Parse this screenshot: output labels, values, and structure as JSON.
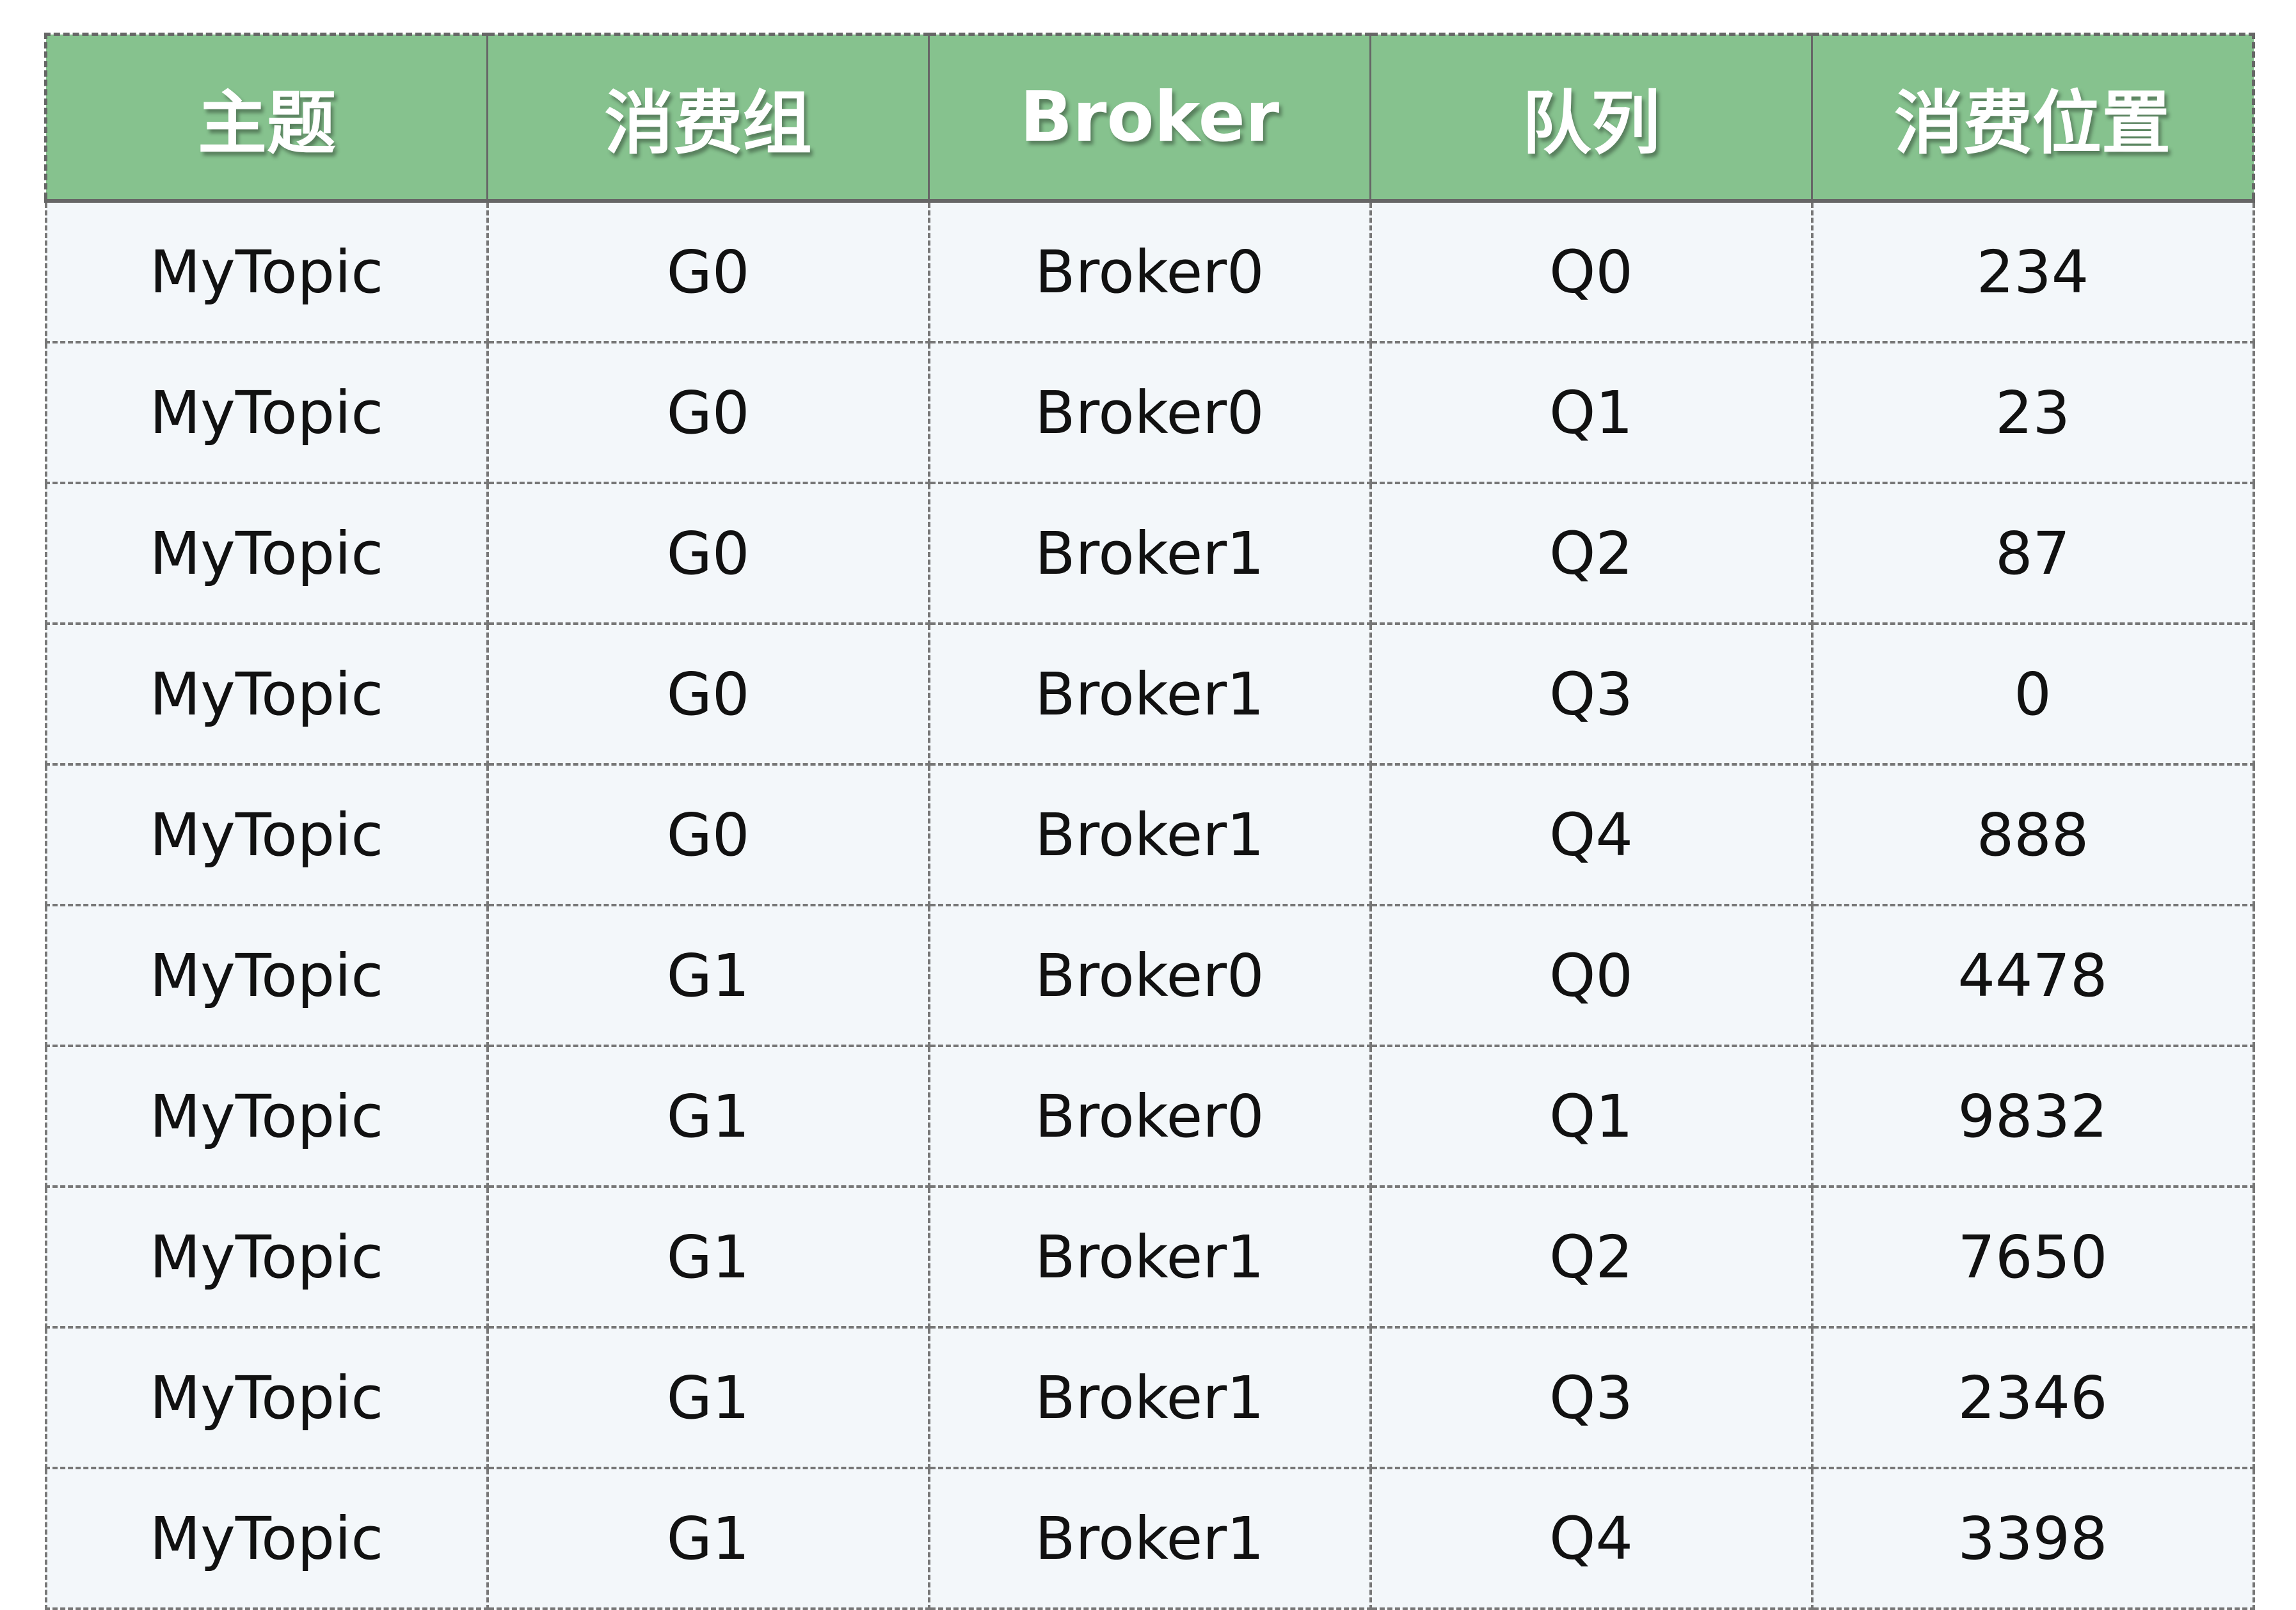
{
  "table": {
    "header_color": "#86c28e",
    "columns": [
      "主题",
      "消费组",
      "Broker",
      "队列",
      "消费位置"
    ],
    "rows": [
      [
        "MyTopic",
        "G0",
        "Broker0",
        "Q0",
        "234"
      ],
      [
        "MyTopic",
        "G0",
        "Broker0",
        "Q1",
        "23"
      ],
      [
        "MyTopic",
        "G0",
        "Broker1",
        "Q2",
        "87"
      ],
      [
        "MyTopic",
        "G0",
        "Broker1",
        "Q3",
        "0"
      ],
      [
        "MyTopic",
        "G0",
        "Broker1",
        "Q4",
        "888"
      ],
      [
        "MyTopic",
        "G1",
        "Broker0",
        "Q0",
        "4478"
      ],
      [
        "MyTopic",
        "G1",
        "Broker0",
        "Q1",
        "9832"
      ],
      [
        "MyTopic",
        "G1",
        "Broker1",
        "Q2",
        "7650"
      ],
      [
        "MyTopic",
        "G1",
        "Broker1",
        "Q3",
        "2346"
      ],
      [
        "MyTopic",
        "G1",
        "Broker1",
        "Q4",
        "3398"
      ]
    ]
  }
}
